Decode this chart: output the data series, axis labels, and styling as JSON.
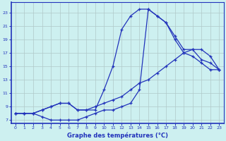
{
  "background_color": "#cdf0f0",
  "grid_color": "#b0c8c8",
  "line_color": "#2233bb",
  "xlabel": "Graphe des températures (°C)",
  "xlim": [
    -0.5,
    23.5
  ],
  "ylim": [
    6.5,
    24.5
  ],
  "yticks": [
    7,
    9,
    11,
    13,
    15,
    17,
    19,
    21,
    23
  ],
  "xticks": [
    0,
    1,
    2,
    3,
    4,
    5,
    6,
    7,
    8,
    9,
    10,
    11,
    12,
    13,
    14,
    15,
    16,
    17,
    18,
    19,
    20,
    21,
    22,
    23
  ],
  "line1_x": [
    0,
    1,
    2,
    3,
    4,
    5,
    6,
    7,
    8,
    9,
    10,
    11,
    12,
    13,
    14,
    15,
    16,
    17,
    18,
    19,
    20,
    21,
    22,
    23
  ],
  "line1_y": [
    8.0,
    8.0,
    8.0,
    8.5,
    9.0,
    9.5,
    9.5,
    8.5,
    8.5,
    8.5,
    11.5,
    15.0,
    20.5,
    22.5,
    23.5,
    23.5,
    22.5,
    21.5,
    19.0,
    17.0,
    16.5,
    15.5,
    14.5,
    14.5
  ],
  "line2_x": [
    0,
    1,
    2,
    3,
    4,
    5,
    6,
    7,
    8,
    9,
    10,
    11,
    12,
    13,
    14,
    15,
    16,
    17,
    18,
    19,
    20,
    21,
    22,
    23
  ],
  "line2_y": [
    8.0,
    8.0,
    8.0,
    8.5,
    9.0,
    9.5,
    9.5,
    8.5,
    8.5,
    9.0,
    9.5,
    10.0,
    10.5,
    11.5,
    12.5,
    13.0,
    14.0,
    15.0,
    16.0,
    17.0,
    17.5,
    17.5,
    16.5,
    14.5
  ],
  "line3_x": [
    0,
    1,
    2,
    3,
    4,
    5,
    6,
    7,
    8,
    9,
    10,
    11,
    12,
    13,
    14,
    15,
    16,
    17,
    18,
    19,
    20,
    21,
    22,
    23
  ],
  "line3_y": [
    8.0,
    8.0,
    8.0,
    7.5,
    7.0,
    7.0,
    7.0,
    7.0,
    7.5,
    8.0,
    8.5,
    8.5,
    9.0,
    9.5,
    11.5,
    23.5,
    22.5,
    21.5,
    19.5,
    17.5,
    17.5,
    16.0,
    15.5,
    14.5
  ]
}
